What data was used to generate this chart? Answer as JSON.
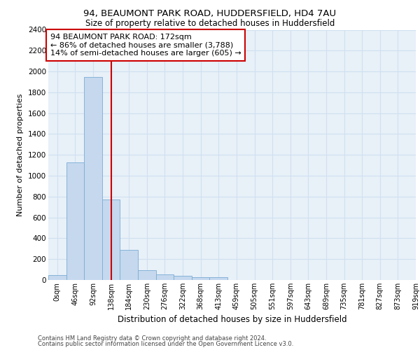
{
  "title_line1": "94, BEAUMONT PARK ROAD, HUDDERSFIELD, HD4 7AU",
  "title_line2": "Size of property relative to detached houses in Huddersfield",
  "xlabel": "Distribution of detached houses by size in Huddersfield",
  "ylabel": "Number of detached properties",
  "footer_line1": "Contains HM Land Registry data © Crown copyright and database right 2024.",
  "footer_line2": "Contains public sector information licensed under the Open Government Licence v3.0.",
  "bin_labels": [
    "0sqm",
    "46sqm",
    "92sqm",
    "138sqm",
    "184sqm",
    "230sqm",
    "276sqm",
    "322sqm",
    "368sqm",
    "413sqm",
    "459sqm",
    "505sqm",
    "551sqm",
    "597sqm",
    "643sqm",
    "689sqm",
    "735sqm",
    "781sqm",
    "827sqm",
    "873sqm",
    "919sqm"
  ],
  "bar_values": [
    50,
    1130,
    1950,
    770,
    290,
    95,
    55,
    40,
    30,
    30,
    0,
    0,
    0,
    0,
    0,
    0,
    0,
    0,
    0,
    0
  ],
  "bar_color": "#c5d8ee",
  "bar_edge_color": "#7aadd4",
  "grid_color": "#d0dff0",
  "background_color": "#e8f0f8",
  "vline_x": 3.0,
  "vline_color": "#cc0000",
  "annotation_text": "94 BEAUMONT PARK ROAD: 172sqm\n← 86% of detached houses are smaller (3,788)\n14% of semi-detached houses are larger (605) →",
  "annotation_box_color": "#ffffff",
  "annotation_box_edge": "#cc0000",
  "ylim": [
    0,
    2400
  ],
  "yticks": [
    0,
    200,
    400,
    600,
    800,
    1000,
    1200,
    1400,
    1600,
    1800,
    2000,
    2200,
    2400
  ]
}
